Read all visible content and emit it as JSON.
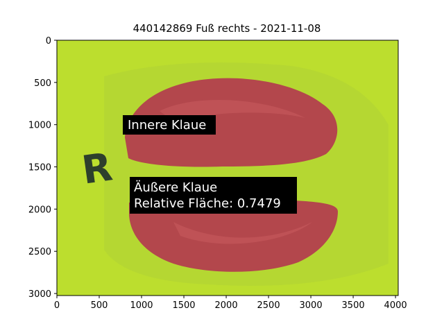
{
  "title": "440142869 Fuß rechts - 2021-11-08",
  "axes": {
    "x_ticks": [
      "0",
      "500",
      "1000",
      "1500",
      "2000",
      "2500",
      "3000",
      "3500",
      "4000"
    ],
    "y_ticks": [
      "0",
      "500",
      "1000",
      "1500",
      "2000",
      "2500",
      "3000"
    ]
  },
  "photo": {
    "background_color": "#bcde2e",
    "region_color": "#b3474c",
    "marker_letter": "R"
  },
  "annotations": {
    "inner": {
      "label": "Innere Klaue"
    },
    "outer": {
      "label": "Äußere Klaue",
      "area_text": "Relative Fläche: 0.7479"
    }
  }
}
